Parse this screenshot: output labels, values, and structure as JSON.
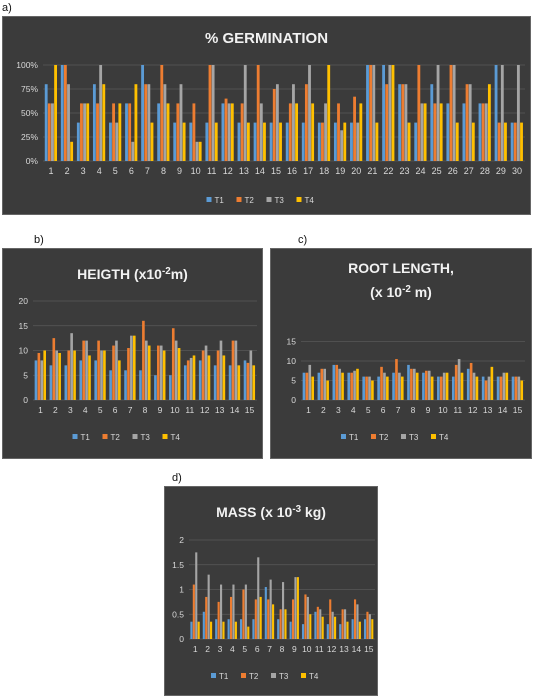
{
  "panel_labels": [
    "a)",
    "b)",
    "c)",
    "d)"
  ],
  "colors": {
    "T1": "#5b9bd5",
    "T2": "#ed7d31",
    "T3": "#a5a5a5",
    "T4": "#ffc000",
    "background": "#3b3b3b",
    "grid": "#595959"
  },
  "chart_data": [
    {
      "type": "bar",
      "title": "% GERMINATION",
      "categories": [
        "1",
        "2",
        "3",
        "4",
        "5",
        "6",
        "7",
        "8",
        "9",
        "10",
        "11",
        "12",
        "13",
        "14",
        "15",
        "16",
        "17",
        "18",
        "19",
        "20",
        "21",
        "22",
        "23",
        "24",
        "25",
        "26",
        "27",
        "28",
        "29",
        "30"
      ],
      "ylim": [
        0,
        100
      ],
      "yticks": [
        "0%",
        "25%",
        "50%",
        "75%",
        "100%"
      ],
      "ytick_values": [
        0,
        25,
        50,
        75,
        100
      ],
      "legend": "bottom",
      "grid": true,
      "series": [
        {
          "name": "T1",
          "values": [
            80,
            100,
            40,
            80,
            40,
            60,
            100,
            60,
            40,
            40,
            40,
            60,
            40,
            40,
            40,
            40,
            40,
            40,
            40,
            40,
            100,
            100,
            80,
            40,
            80,
            60,
            60,
            60,
            100,
            40
          ]
        },
        {
          "name": "T2",
          "values": [
            60,
            100,
            60,
            60,
            60,
            60,
            80,
            100,
            60,
            60,
            100,
            65,
            60,
            100,
            75,
            60,
            80,
            40,
            60,
            67,
            100,
            80,
            80,
            100,
            60,
            100,
            80,
            60,
            40,
            40
          ]
        },
        {
          "name": "T3",
          "values": [
            60,
            80,
            60,
            100,
            40,
            20,
            80,
            80,
            80,
            20,
            100,
            60,
            100,
            60,
            80,
            80,
            100,
            60,
            32,
            40,
            100,
            100,
            80,
            60,
            100,
            100,
            80,
            60,
            100,
            100
          ]
        },
        {
          "name": "T4",
          "values": [
            100,
            20,
            60,
            80,
            60,
            80,
            40,
            60,
            40,
            20,
            40,
            60,
            40,
            40,
            40,
            60,
            60,
            100,
            40,
            60,
            40,
            100,
            40,
            60,
            60,
            40,
            40,
            80,
            40,
            40
          ]
        }
      ]
    },
    {
      "type": "bar",
      "title": "HEIGTH (x10",
      "title_sup": "-2",
      "title_end": "m)",
      "categories": [
        "1",
        "2",
        "3",
        "4",
        "5",
        "6",
        "7",
        "8",
        "9",
        "10",
        "11",
        "12",
        "13",
        "14",
        "15"
      ],
      "ylim": [
        0,
        20
      ],
      "yticks": [
        "0",
        "5",
        "10",
        "15",
        "20"
      ],
      "ytick_values": [
        0,
        5,
        10,
        15,
        20
      ],
      "legend": "bottom",
      "grid": true,
      "series": [
        {
          "name": "T1",
          "values": [
            8,
            7,
            7,
            8,
            8,
            6,
            6,
            6,
            5,
            5,
            7,
            8,
            7,
            7,
            8
          ]
        },
        {
          "name": "T2",
          "values": [
            9.5,
            12.5,
            10,
            12,
            12,
            11,
            10.5,
            16,
            11,
            14.5,
            8,
            10,
            10,
            12,
            7.5
          ]
        },
        {
          "name": "T3",
          "values": [
            8,
            10,
            13.5,
            12,
            10,
            12,
            13,
            12,
            11,
            12,
            8.5,
            11,
            12,
            12,
            10
          ]
        },
        {
          "name": "T4",
          "values": [
            10,
            9.5,
            10,
            9,
            10,
            8,
            13,
            11,
            10,
            10.5,
            9,
            9,
            9,
            7,
            7
          ]
        }
      ]
    },
    {
      "type": "bar",
      "title": "ROOT LENGTH,",
      "title_line2": "(x 10",
      "title_sup": "-2",
      "title_end": " m)",
      "categories": [
        "1",
        "2",
        "3",
        "4",
        "5",
        "6",
        "7",
        "8",
        "9",
        "10",
        "11",
        "12",
        "13",
        "14",
        "15"
      ],
      "ylim": [
        0,
        20
      ],
      "yticks": [
        "0",
        "5",
        "10",
        "15"
      ],
      "ytick_values": [
        0,
        5,
        10,
        15
      ],
      "legend": "bottom",
      "grid": true,
      "series": [
        {
          "name": "T1",
          "values": [
            7,
            7,
            9,
            7,
            6,
            6,
            7,
            9,
            7,
            6,
            6,
            8,
            6,
            6,
            6
          ]
        },
        {
          "name": "T2",
          "values": [
            7,
            8,
            9,
            7,
            6,
            8.5,
            10.5,
            8,
            7.5,
            6,
            9,
            9.5,
            5,
            6,
            6
          ]
        },
        {
          "name": "T3",
          "values": [
            9,
            8,
            8,
            7.5,
            6,
            7,
            7,
            8,
            7.5,
            7,
            10.5,
            7,
            6,
            7,
            6
          ]
        },
        {
          "name": "T4",
          "values": [
            6,
            5,
            7,
            8,
            5,
            6,
            6,
            7,
            6,
            7,
            7,
            6,
            8.5,
            7,
            5
          ]
        }
      ]
    },
    {
      "type": "bar",
      "title": "MASS (x 10",
      "title_sup": "-3",
      "title_end": " kg)",
      "categories": [
        "1",
        "2",
        "3",
        "4",
        "5",
        "6",
        "7",
        "8",
        "9",
        "10",
        "11",
        "12",
        "13",
        "14",
        "15"
      ],
      "ylim": [
        0,
        2
      ],
      "yticks": [
        "0",
        "0.5",
        "1",
        "1.5",
        "2"
      ],
      "ytick_values": [
        0,
        0.5,
        1,
        1.5,
        2
      ],
      "legend": "bottom",
      "grid": true,
      "series": [
        {
          "name": "T1",
          "values": [
            0.35,
            0.55,
            0.4,
            0.4,
            0.4,
            0.4,
            1.05,
            0.4,
            0.35,
            0.3,
            0.55,
            0.3,
            0.3,
            0.4,
            0.4
          ]
        },
        {
          "name": "T2",
          "values": [
            1.1,
            0.85,
            0.75,
            0.85,
            1.0,
            0.8,
            0.8,
            0.6,
            0.8,
            0.9,
            0.65,
            0.8,
            0.6,
            0.8,
            0.55
          ]
        },
        {
          "name": "T3",
          "values": [
            1.75,
            1.3,
            1.1,
            1.1,
            1.1,
            1.65,
            1.2,
            1.15,
            1.25,
            0.85,
            0.6,
            0.55,
            0.6,
            0.7,
            0.5
          ]
        },
        {
          "name": "T4",
          "values": [
            0.35,
            0.35,
            0.35,
            0.35,
            0.25,
            0.85,
            0.7,
            0.6,
            1.25,
            0.5,
            0.45,
            0.45,
            0.35,
            0.35,
            0.4
          ]
        }
      ]
    }
  ]
}
